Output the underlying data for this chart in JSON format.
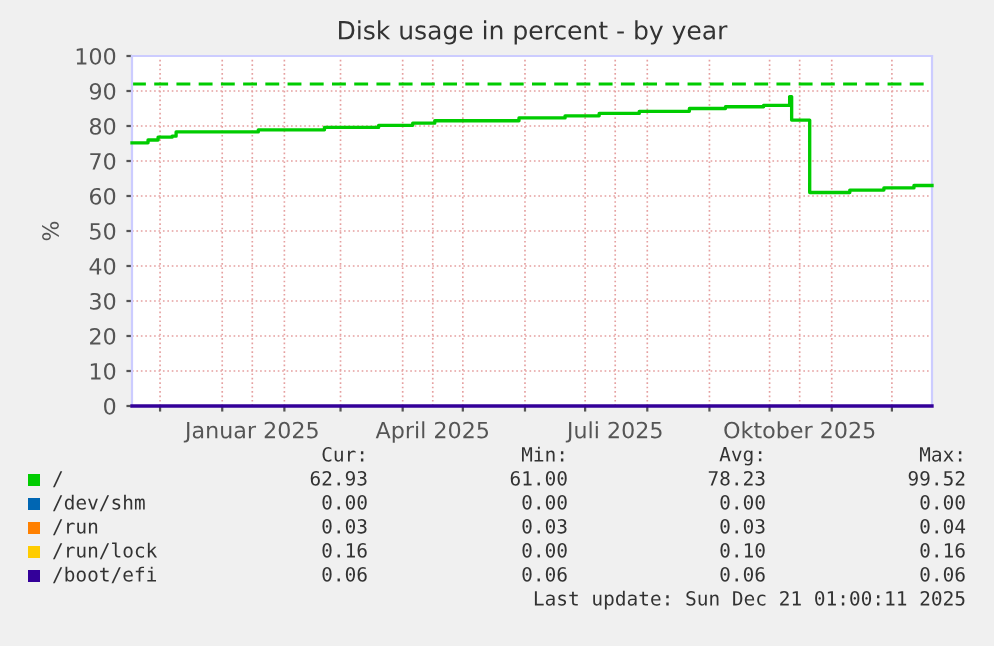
{
  "chart_data": {
    "type": "step",
    "title": "Disk usage in percent - by year",
    "ylabel": "%",
    "xlim": [
      "2024-11-17",
      "2025-12-21"
    ],
    "xticks": [
      {
        "value": "2024-12-01",
        "label": null
      },
      {
        "value": "2025-01-01",
        "label": null
      },
      {
        "value": "2025-01-16",
        "label": "Januar 2025"
      },
      {
        "value": "2025-02-01",
        "label": null
      },
      {
        "value": "2025-03-01",
        "label": null
      },
      {
        "value": "2025-04-01",
        "label": null
      },
      {
        "value": "2025-04-16",
        "label": "April 2025"
      },
      {
        "value": "2025-05-01",
        "label": null
      },
      {
        "value": "2025-06-01",
        "label": null
      },
      {
        "value": "2025-07-01",
        "label": null
      },
      {
        "value": "2025-07-16",
        "label": "Juli 2025"
      },
      {
        "value": "2025-08-01",
        "label": null
      },
      {
        "value": "2025-09-01",
        "label": null
      },
      {
        "value": "2025-10-01",
        "label": null
      },
      {
        "value": "2025-10-16",
        "label": "Oktober 2025"
      },
      {
        "value": "2025-11-01",
        "label": null
      },
      {
        "value": "2025-12-01",
        "label": null
      }
    ],
    "ylim": [
      0,
      100
    ],
    "yticks": [
      0,
      10,
      20,
      30,
      40,
      50,
      60,
      70,
      80,
      90,
      100
    ],
    "grid": true,
    "legend": "bottom",
    "series": [
      {
        "name": "/",
        "color": "#00cc00",
        "x": [
          "2024-11-17",
          "2024-11-25",
          "2024-11-30",
          "2024-12-07",
          "2024-12-09",
          "2025-01-19",
          "2025-02-21",
          "2025-03-20",
          "2025-04-06",
          "2025-04-17",
          "2025-05-29",
          "2025-06-21",
          "2025-07-08",
          "2025-07-28",
          "2025-08-22",
          "2025-09-09",
          "2025-09-28",
          "2025-10-11",
          "2025-10-12",
          "2025-10-21",
          "2025-11-10",
          "2025-11-27",
          "2025-12-12",
          "2025-12-21"
        ],
        "values": [
          75.2,
          76.0,
          76.8,
          77.1,
          78.3,
          78.9,
          79.6,
          80.2,
          80.8,
          81.5,
          82.3,
          82.9,
          83.6,
          84.2,
          85.0,
          85.5,
          85.9,
          88.4,
          81.7,
          61.0,
          61.7,
          62.3,
          63.0,
          63.0
        ]
      },
      {
        "name": "/dev/shm",
        "color": "#0066b3"
      },
      {
        "name": "/run",
        "color": "#ff8000"
      },
      {
        "name": "/run/lock",
        "color": "#ffcc00"
      },
      {
        "name": "/boot/efi",
        "color": "#330099",
        "x": [
          "2024-11-17",
          "2025-12-21"
        ],
        "values": [
          0,
          0
        ]
      }
    ],
    "ref_lines": [
      {
        "axis": "y",
        "value": 92,
        "color": "#00cc00",
        "line_style": "dashed"
      }
    ],
    "annotations": [
      "Cur:",
      "Min:",
      "Avg:",
      "Max:",
      "62.93",
      "61.00",
      "78.23",
      "99.52",
      "0.00",
      "0.00",
      "0.00",
      "0.00",
      "0.03",
      "0.03",
      "0.03",
      "0.04",
      "0.16",
      "0.00",
      "0.10",
      "0.16",
      "0.06",
      "0.06",
      "0.06",
      "0.06",
      "Last update: Sun Dec 21 01:00:11 2025"
    ]
  }
}
